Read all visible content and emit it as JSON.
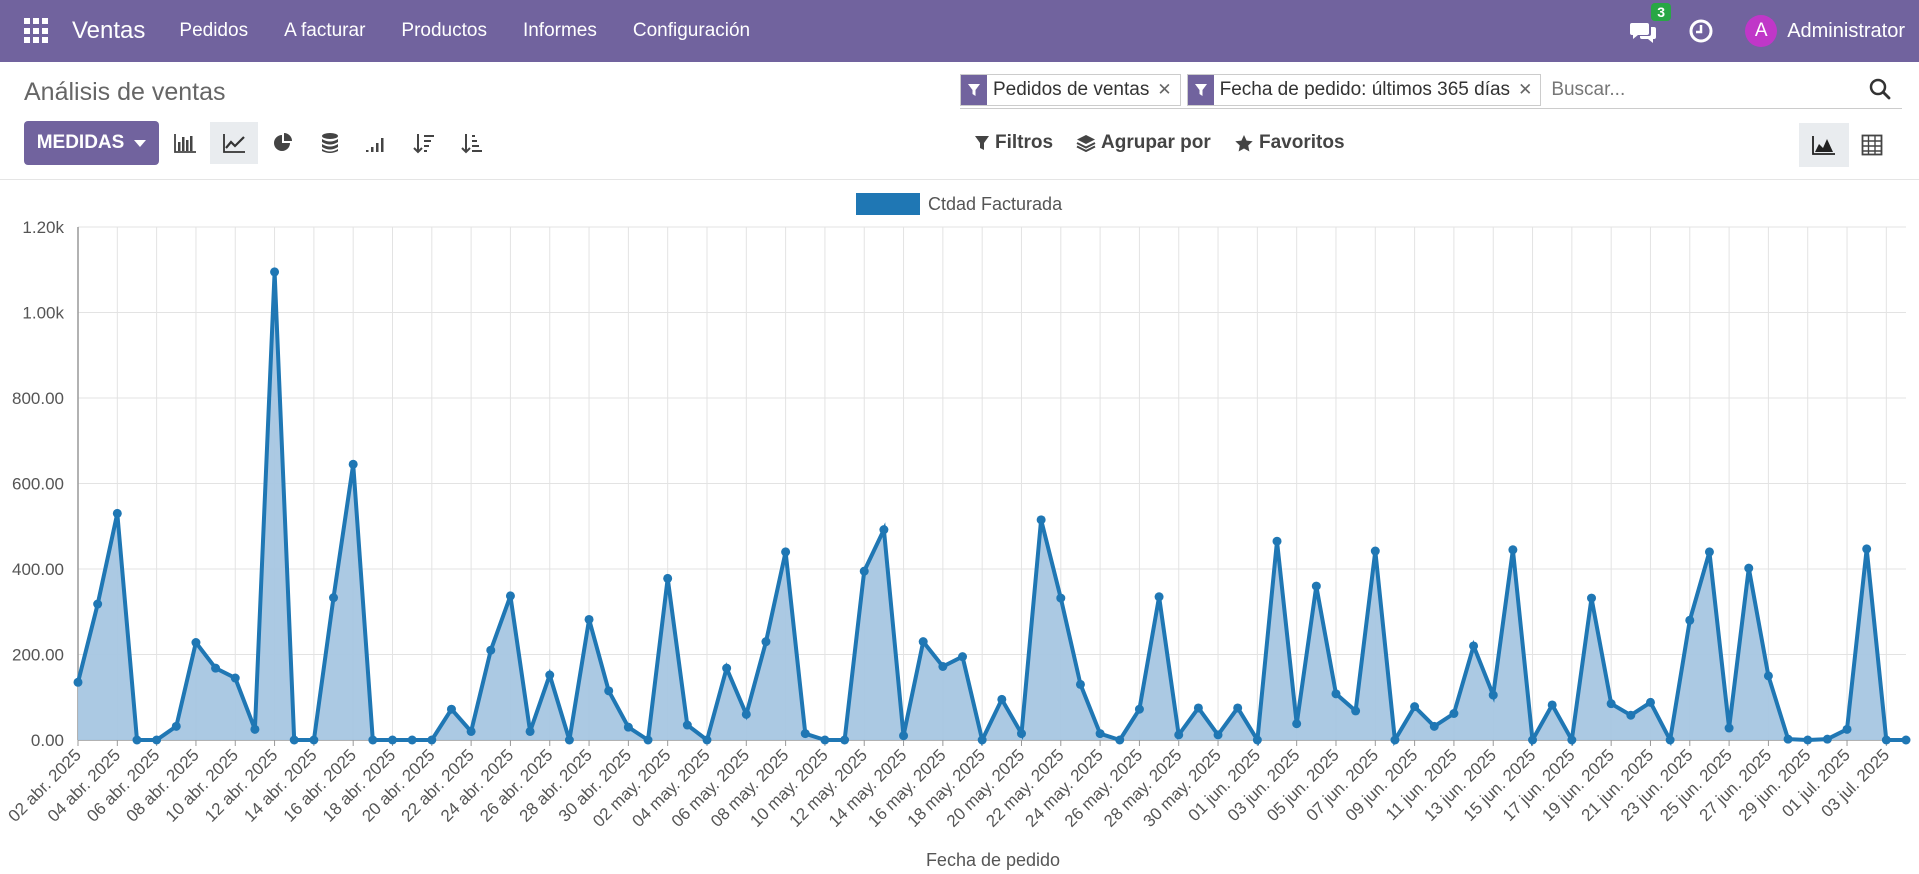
{
  "navbar": {
    "brand": "Ventas",
    "menu": [
      "Pedidos",
      "A facturar",
      "Productos",
      "Informes",
      "Configuración"
    ],
    "chat_count": "3",
    "avatar_letter": "A",
    "user_name": "Administrator",
    "color": "#71639e"
  },
  "control_panel": {
    "title": "Análisis de ventas",
    "facets": [
      "Pedidos de ventas",
      "Fecha de pedido: últimos 365 días"
    ],
    "search_placeholder": "Buscar...",
    "measures_label": "MEDIDAS",
    "filters_label": "Filtros",
    "groupby_label": "Agrupar por",
    "favorites_label": "Favoritos"
  },
  "chart_data": {
    "type": "area",
    "legend": [
      "Ctdad Facturada"
    ],
    "legend_position": "top-center",
    "series_color": "#1f77b4",
    "fill_color": "#a6c6e2",
    "xlabel": "Fecha de pedido",
    "ylabel": "",
    "ylim": [
      0,
      1200
    ],
    "y_ticks": [
      "0.00",
      "200.00",
      "400.00",
      "600.00",
      "800.00",
      "1.00k",
      "1.20k"
    ],
    "grid": true,
    "x_tick_labels": [
      "02 abr. 2025",
      "04 abr. 2025",
      "06 abr. 2025",
      "08 abr. 2025",
      "10 abr. 2025",
      "12 abr. 2025",
      "14 abr. 2025",
      "16 abr. 2025",
      "18 abr. 2025",
      "20 abr. 2025",
      "22 abr. 2025",
      "24 abr. 2025",
      "26 abr. 2025",
      "28 abr. 2025",
      "30 abr. 2025",
      "02 may. 2025",
      "04 may. 2025",
      "06 may. 2025",
      "08 may. 2025",
      "10 may. 2025",
      "12 may. 2025",
      "14 may. 2025",
      "16 may. 2025",
      "18 may. 2025",
      "20 may. 2025",
      "22 may. 2025",
      "24 may. 2025",
      "26 may. 2025",
      "28 may. 2025",
      "30 may. 2025",
      "01 jun. 2025",
      "03 jun. 2025",
      "05 jun. 2025",
      "07 jun. 2025",
      "09 jun. 2025",
      "11 jun. 2025",
      "13 jun. 2025",
      "15 jun. 2025",
      "17 jun. 2025",
      "19 jun. 2025",
      "21 jun. 2025",
      "23 jun. 2025",
      "25 jun. 2025",
      "27 jun. 2025",
      "29 jun. 2025",
      "01 jul. 2025",
      "03 jul. 2025"
    ],
    "values": [
      135,
      318,
      530,
      0,
      0,
      32,
      228,
      168,
      145,
      25,
      1095,
      0,
      0,
      333,
      645,
      0,
      0,
      0,
      0,
      72,
      20,
      210,
      337,
      20,
      152,
      0,
      282,
      115,
      30,
      0,
      378,
      35,
      0,
      168,
      60,
      230,
      440,
      15,
      0,
      0,
      395,
      492,
      10,
      230,
      172,
      195,
      0,
      95,
      15,
      515,
      332,
      130,
      15,
      0,
      72,
      335,
      12,
      75,
      12,
      75,
      0,
      465,
      38,
      360,
      108,
      68,
      442,
      0,
      78,
      32,
      62,
      220,
      105,
      445,
      0,
      82,
      0,
      332,
      85,
      58,
      88,
      0,
      280,
      440,
      28,
      402,
      150,
      2,
      0,
      2,
      25,
      447,
      0,
      0
    ]
  }
}
